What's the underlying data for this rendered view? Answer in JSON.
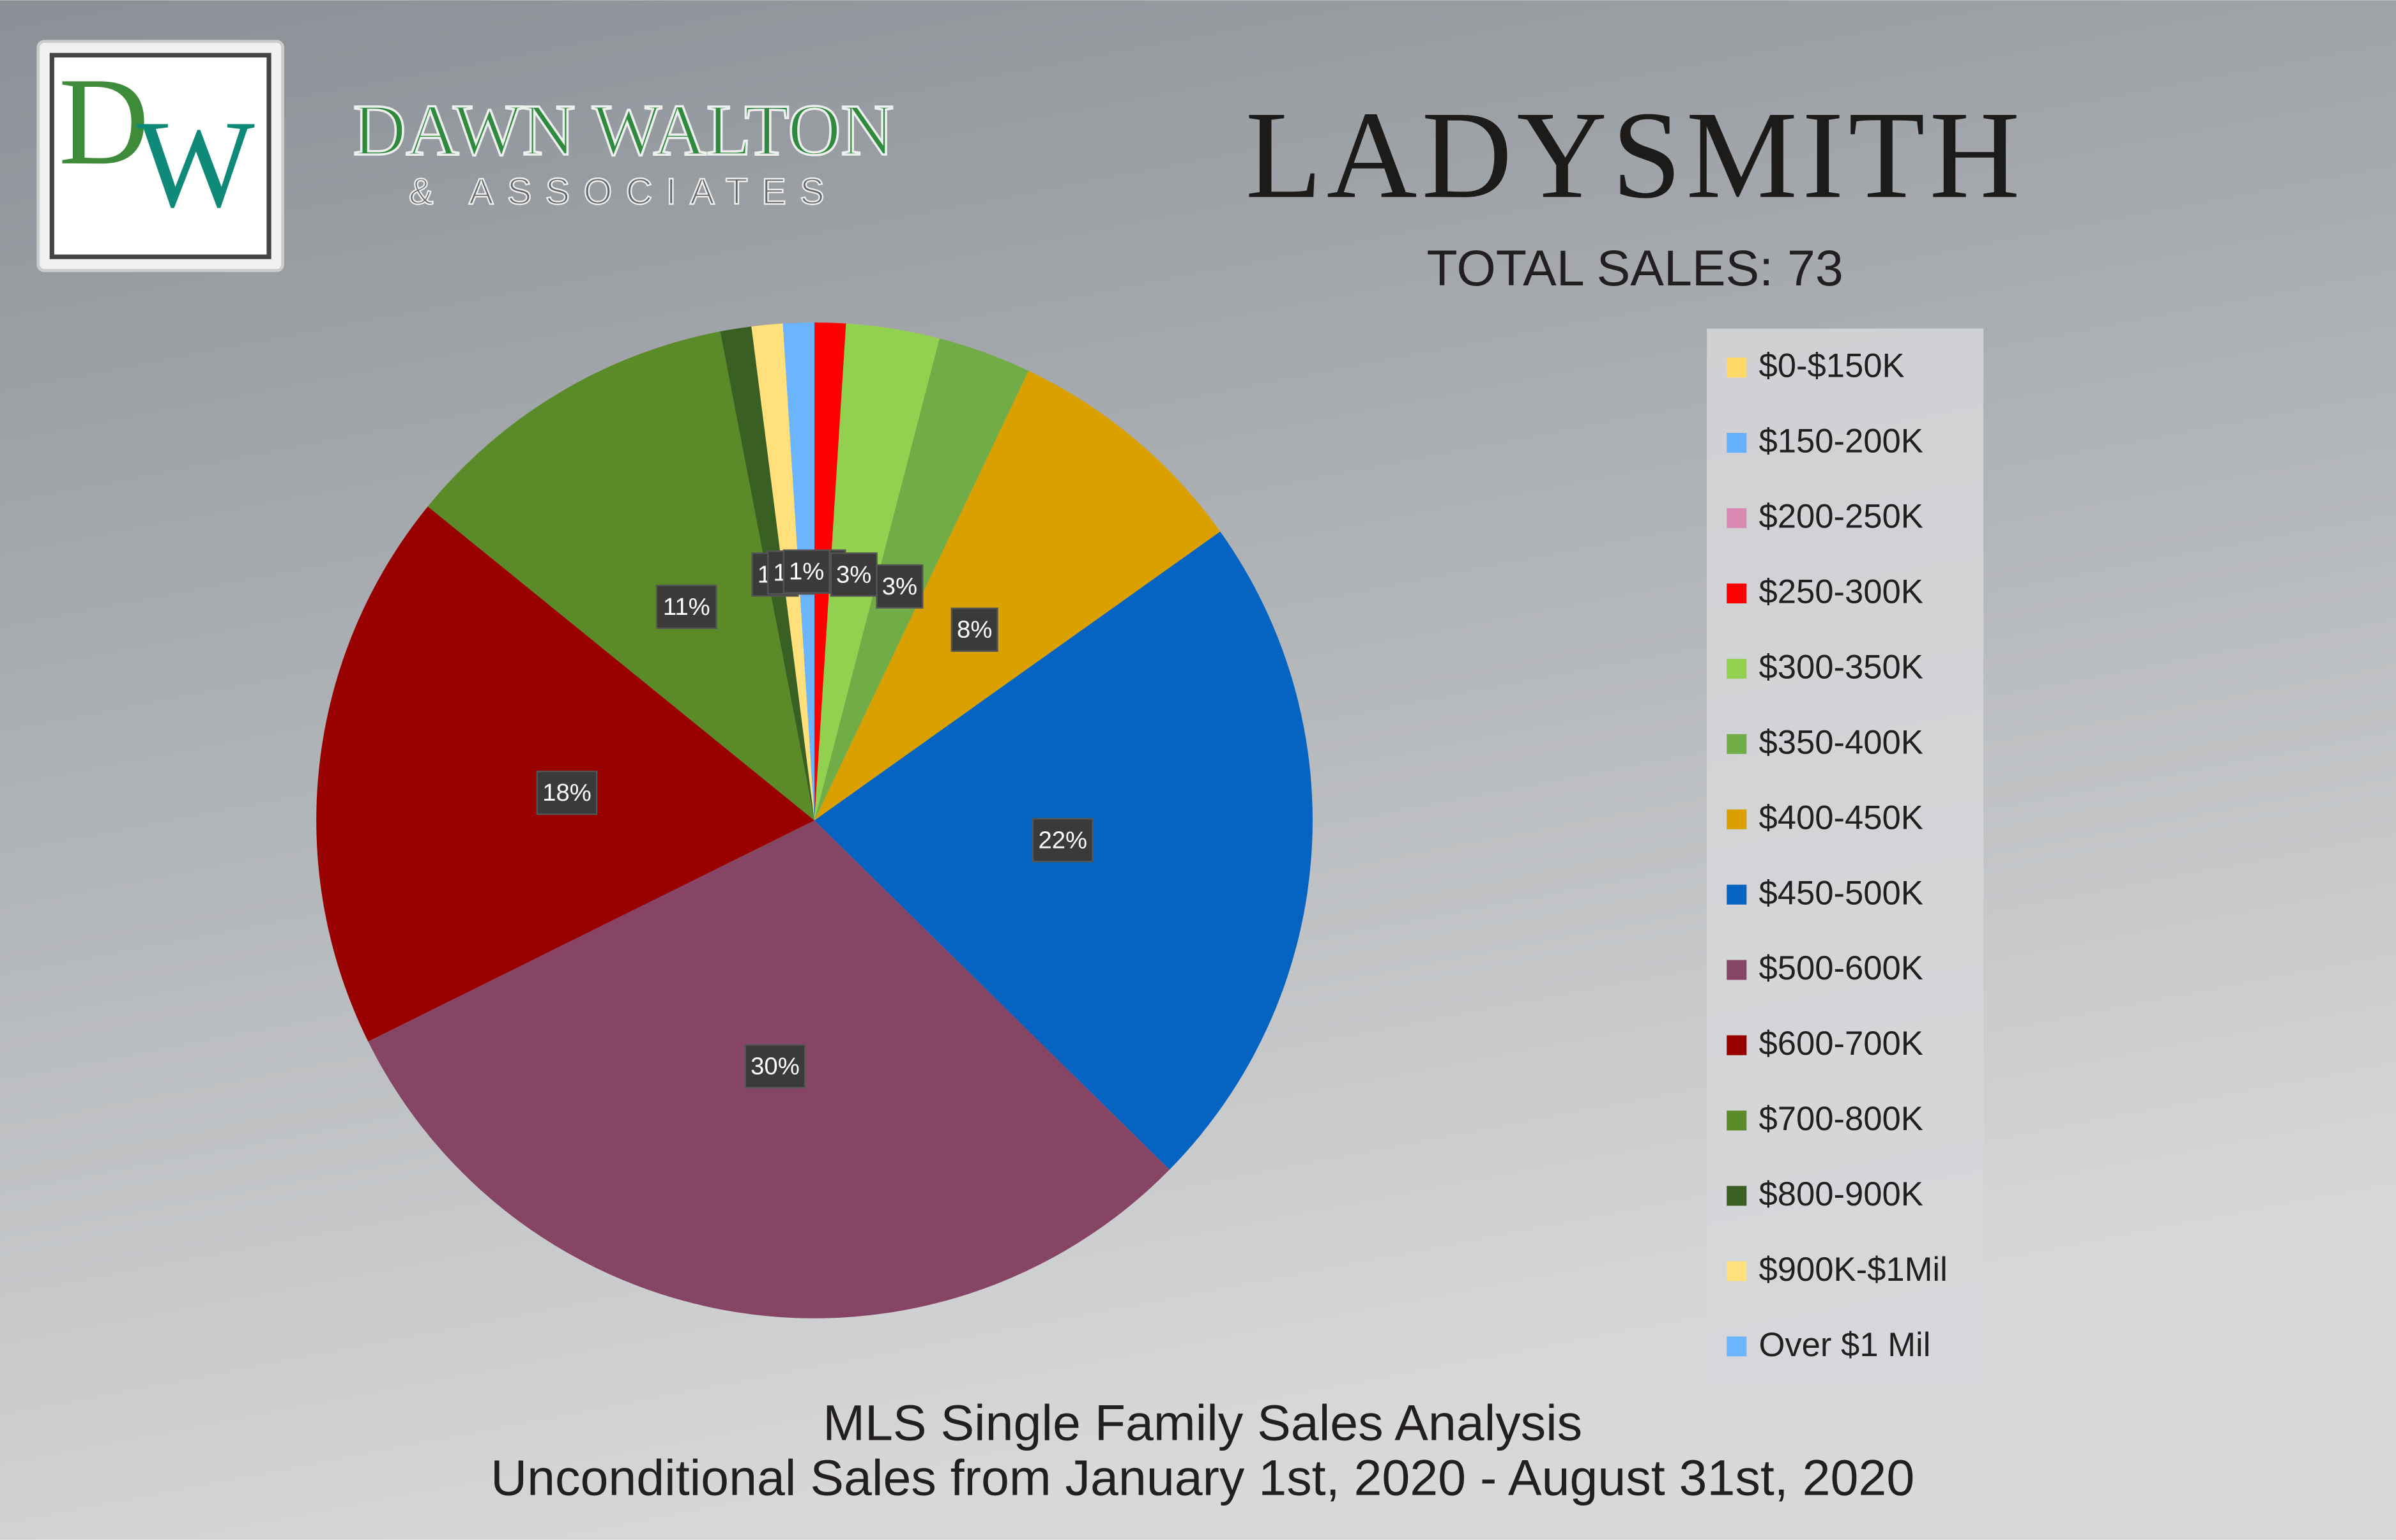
{
  "logo": {
    "monogram": [
      "D",
      "W"
    ],
    "name": "DAWN WALTON",
    "tagline": "& ASSOCIATES"
  },
  "chart_data": {
    "type": "pie",
    "title": "LADYSMITH",
    "subtitle": "TOTAL SALES: 73",
    "footer": [
      "MLS Single Family Sales Analysis",
      "Unconditional Sales from January 1st, 2020 - August 31st, 2020"
    ],
    "categories": [
      "$0-$150K",
      "$150-200K",
      "$200-250K",
      "$250-300K",
      "$300-350K",
      "$350-400K",
      "$400-450K",
      "$450-500K",
      "$500-600K",
      "$600-700K",
      "$700-800K",
      "$800-900K",
      "$900K-$1Mil",
      "Over $1 Mil"
    ],
    "values": [
      0,
      0,
      0,
      1,
      3,
      3,
      8,
      22,
      30,
      18,
      11,
      1,
      1,
      1
    ],
    "value_labels": [
      null,
      null,
      null,
      "1%",
      "3%",
      "3%",
      "8%",
      "22%",
      "30%",
      "18%",
      "11%",
      "1%",
      "1%",
      "1%"
    ],
    "colors": [
      "#ffd966",
      "#66b2ff",
      "#d98ab3",
      "#ff0000",
      "#92d050",
      "#70ad47",
      "#d9a000",
      "#0563c1",
      "#874565",
      "#990000",
      "#5b8a28",
      "#3a5f22",
      "#ffe07a",
      "#6bb5ff"
    ],
    "start_angle": 0,
    "direction": "clockwise",
    "legend": "right"
  }
}
